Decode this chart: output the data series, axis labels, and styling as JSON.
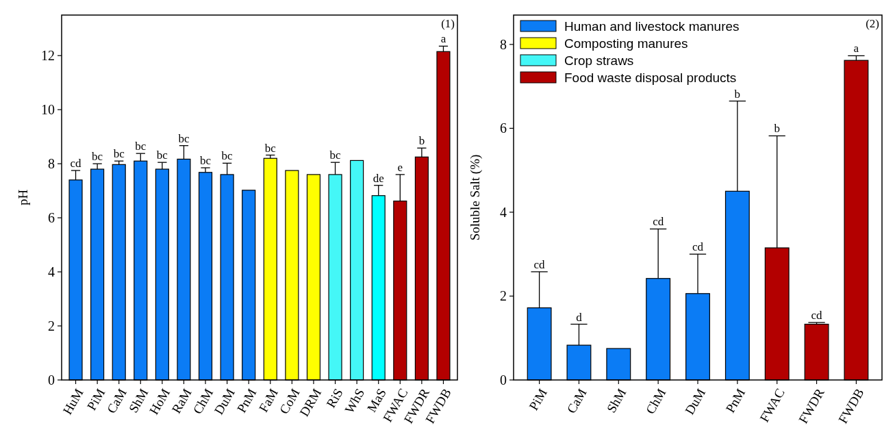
{
  "chart_data": [
    {
      "type": "bar",
      "ylabel": "pH",
      "categories": [
        "HuM",
        "PiM",
        "CaM",
        "ShM",
        "HoM",
        "RaM",
        "ChM",
        "DuM",
        "PnM",
        "FaM",
        "CoM",
        "DRM",
        "RiS",
        "WhS",
        "MaS",
        "FWAC",
        "FWDR",
        "FWDB"
      ],
      "ylim": [
        0,
        13.5
      ],
      "yticks": [
        0,
        2,
        4,
        6,
        8,
        10,
        12
      ],
      "grid": false,
      "series": [
        {
          "color": "#0b7cf5",
          "values": [
            7.4,
            7.8,
            7.97,
            8.1,
            7.8,
            8.17,
            7.68,
            7.6,
            7.02,
            null,
            null,
            null,
            null,
            null,
            null,
            null,
            null,
            null
          ],
          "errors": [
            0.35,
            0.2,
            0.13,
            0.28,
            0.25,
            0.5,
            0.17,
            0.42,
            null,
            null,
            null,
            null,
            null,
            null,
            null,
            null,
            null,
            null
          ]
        },
        {
          "color": "#ffff00",
          "values": [
            null,
            null,
            null,
            null,
            null,
            null,
            null,
            null,
            null,
            8.2,
            7.75,
            7.6,
            null,
            null,
            null,
            null,
            null,
            null
          ],
          "errors": [
            null,
            null,
            null,
            null,
            null,
            null,
            null,
            null,
            null,
            0.12,
            null,
            null,
            null,
            null,
            null,
            null,
            null,
            null
          ]
        },
        {
          "color": "#44f7f7",
          "colors": [
            null,
            null,
            null,
            null,
            null,
            null,
            null,
            null,
            null,
            null,
            null,
            null,
            null,
            null,
            "#00ffff",
            null,
            null,
            null
          ],
          "values": [
            null,
            null,
            null,
            null,
            null,
            null,
            null,
            null,
            null,
            null,
            null,
            null,
            7.6,
            8.12,
            6.82,
            null,
            null,
            null
          ],
          "errors": [
            null,
            null,
            null,
            null,
            null,
            null,
            null,
            null,
            null,
            null,
            null,
            null,
            0.45,
            null,
            0.38,
            null,
            null,
            null
          ]
        },
        {
          "color": "#b30000",
          "values": [
            null,
            null,
            null,
            null,
            null,
            null,
            null,
            null,
            null,
            null,
            null,
            null,
            null,
            null,
            null,
            6.62,
            8.25,
            12.15
          ],
          "errors": [
            null,
            null,
            null,
            null,
            null,
            null,
            null,
            null,
            null,
            null,
            null,
            null,
            null,
            null,
            null,
            0.98,
            0.33,
            0.2
          ]
        }
      ],
      "annotations": [
        "(1)",
        {
          "text": "cd",
          "x": "HuM",
          "y": 7.75
        },
        {
          "text": "bc",
          "x": "PiM",
          "y": 8.0
        },
        {
          "text": "bc",
          "x": "CaM",
          "y": 8.1
        },
        {
          "text": "bc",
          "x": "ShM",
          "y": 8.38
        },
        {
          "text": "bc",
          "x": "HoM",
          "y": 8.05
        },
        {
          "text": "bc",
          "x": "RaM",
          "y": 8.67
        },
        {
          "text": "bc",
          "x": "ChM",
          "y": 7.85
        },
        {
          "text": "bc",
          "x": "DuM",
          "y": 8.02
        },
        {
          "text": "bc",
          "x": "FaM",
          "y": 8.32
        },
        {
          "text": "bc",
          "x": "RiS",
          "y": 8.05
        },
        {
          "text": "de",
          "x": "MaS",
          "y": 7.2
        },
        {
          "text": "e",
          "x": "FWAC",
          "y": 7.6
        },
        {
          "text": "b",
          "x": "FWDR",
          "y": 8.58
        },
        {
          "text": "a",
          "x": "FWDB",
          "y": 12.35
        }
      ]
    },
    {
      "type": "bar",
      "ylabel": "Soluble Salt (%)",
      "categories": [
        "PiM",
        "CaM",
        "ShM",
        "ChM",
        "DuM",
        "PnM",
        "FWAC",
        "FWDR",
        "FWDB"
      ],
      "ylim": [
        0,
        8.7
      ],
      "yticks": [
        0,
        2,
        4,
        6,
        8
      ],
      "grid": false,
      "legend": "top left",
      "series": [
        {
          "name": "Human and livestock manures",
          "color": "#0b7cf5",
          "values": [
            1.72,
            0.83,
            0.75,
            2.42,
            2.06,
            4.5,
            null,
            null,
            null
          ],
          "errors": [
            0.86,
            0.5,
            null,
            1.18,
            0.94,
            2.15,
            null,
            null,
            null
          ]
        },
        {
          "name": "Composting manures",
          "color": "#ffff00",
          "values": [
            null,
            null,
            null,
            null,
            null,
            null,
            null,
            null,
            null
          ]
        },
        {
          "name": "Crop straws",
          "color": "#44f7f7",
          "values": [
            null,
            null,
            null,
            null,
            null,
            null,
            null,
            null,
            null
          ]
        },
        {
          "name": "Food waste disposal products",
          "color": "#b30000",
          "values": [
            null,
            null,
            null,
            null,
            null,
            null,
            3.15,
            1.33,
            7.62
          ],
          "errors": [
            null,
            null,
            null,
            null,
            null,
            null,
            2.67,
            0.04,
            0.11
          ]
        }
      ],
      "annotations": [
        "(2)",
        {
          "text": "cd",
          "x": "PiM",
          "y": 2.58
        },
        {
          "text": "d",
          "x": "CaM",
          "y": 1.33
        },
        {
          "text": "cd",
          "x": "ChM",
          "y": 3.6
        },
        {
          "text": "cd",
          "x": "DuM",
          "y": 3.0
        },
        {
          "text": "b",
          "x": "PnM",
          "y": 6.65
        },
        {
          "text": "b",
          "x": "FWAC",
          "y": 5.82
        },
        {
          "text": "cd",
          "x": "FWDR",
          "y": 1.37
        },
        {
          "text": "a",
          "x": "FWDB",
          "y": 7.73
        }
      ]
    }
  ]
}
